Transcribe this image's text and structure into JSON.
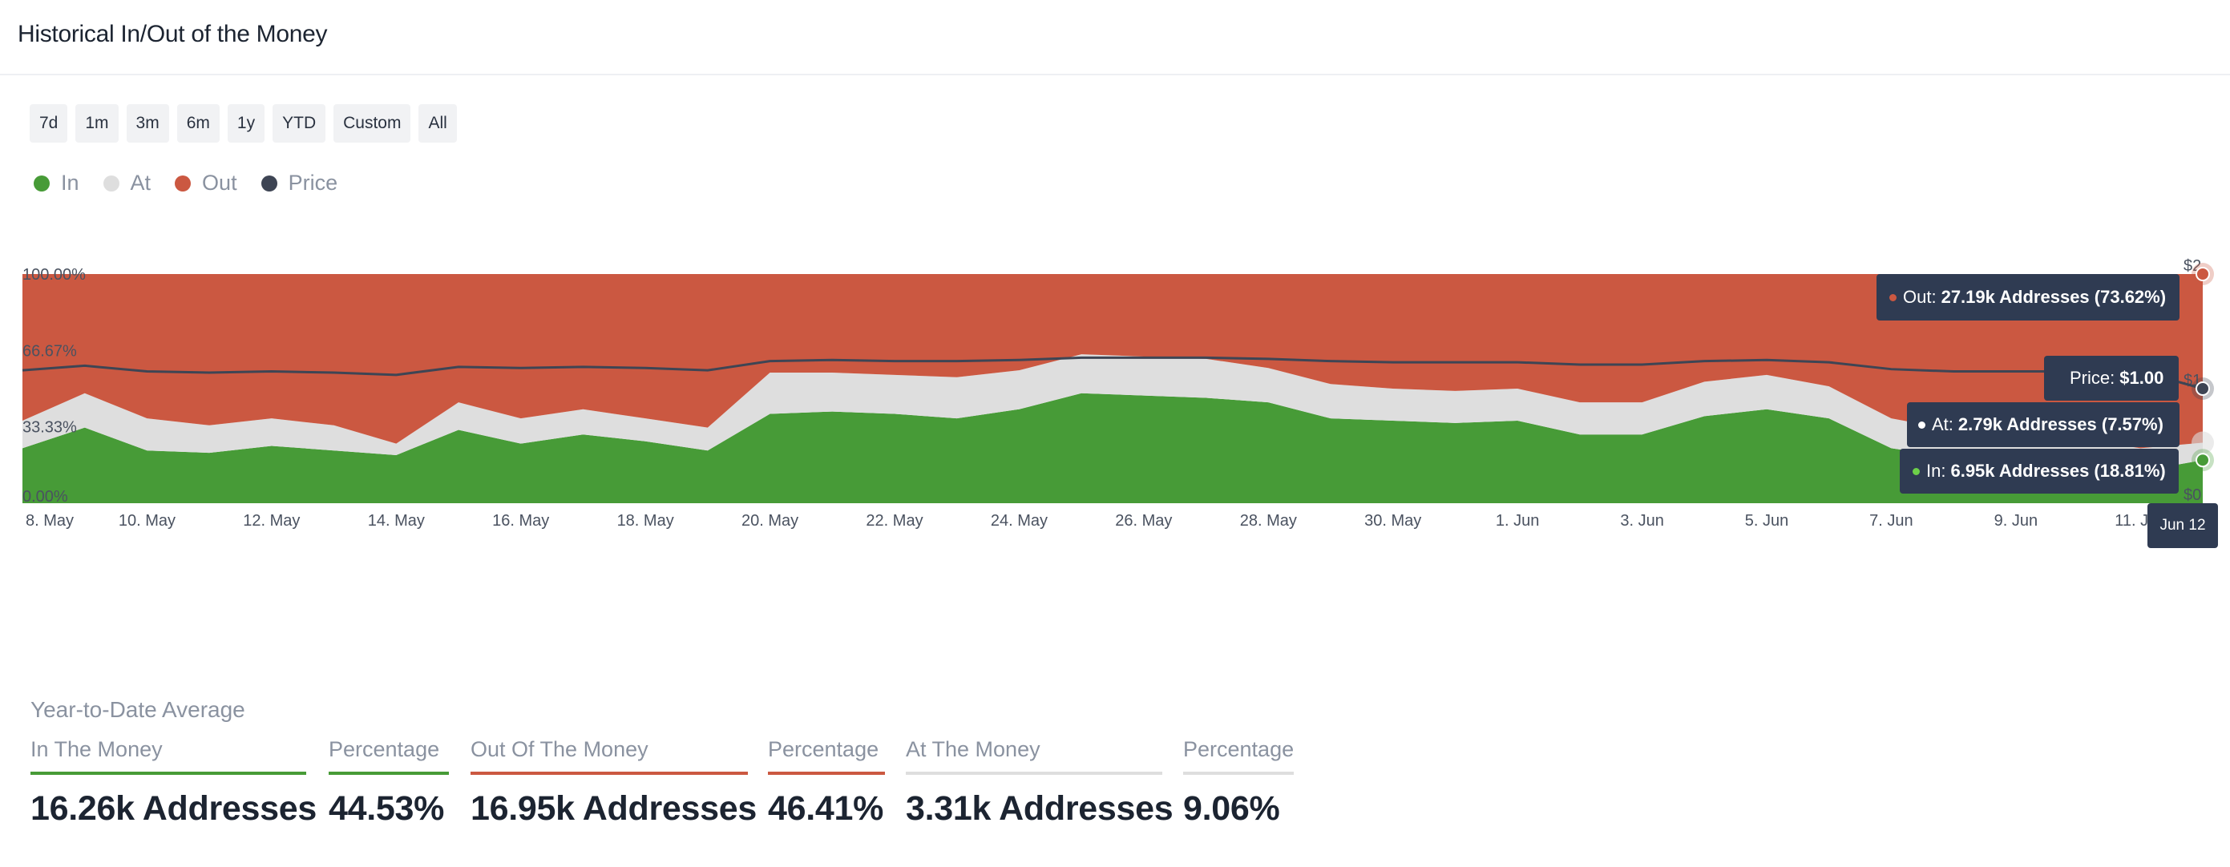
{
  "header": {
    "title": "Historical In/Out of the Money"
  },
  "ranges": [
    "7d",
    "1m",
    "3m",
    "6m",
    "1y",
    "YTD",
    "Custom",
    "All"
  ],
  "legend": [
    {
      "label": "In",
      "color": "#479b37"
    },
    {
      "label": "At",
      "color": "#dedede"
    },
    {
      "label": "Out",
      "color": "#cb5841"
    },
    {
      "label": "Price",
      "color": "#3e4554"
    }
  ],
  "chart_data": {
    "type": "area",
    "stacked": true,
    "normalized": true,
    "title": "Historical In/Out of the Money",
    "y_ticks": [
      "0.00%",
      "33.33%",
      "66.67%",
      "100.00%"
    ],
    "ylim": [
      0,
      100
    ],
    "right_axis_ticks": [
      "$0",
      "$1",
      "$2"
    ],
    "x_tick_labels": [
      "8. May",
      "10. May",
      "12. May",
      "14. May",
      "16. May",
      "18. May",
      "20. May",
      "22. May",
      "24. May",
      "26. May",
      "28. May",
      "30. May",
      "1. Jun",
      "3. Jun",
      "5. Jun",
      "7. Jun",
      "9. Jun",
      "11. Jun"
    ],
    "x": [
      "8 May",
      "9 May",
      "10 May",
      "11 May",
      "12 May",
      "13 May",
      "14 May",
      "15 May",
      "16 May",
      "17 May",
      "18 May",
      "19 May",
      "20 May",
      "21 May",
      "22 May",
      "23 May",
      "24 May",
      "25 May",
      "26 May",
      "27 May",
      "28 May",
      "29 May",
      "30 May",
      "31 May",
      "1 Jun",
      "2 Jun",
      "3 Jun",
      "4 Jun",
      "5 Jun",
      "6 Jun",
      "7 Jun",
      "8 Jun",
      "9 Jun",
      "10 Jun",
      "11 Jun",
      "12 Jun"
    ],
    "series": [
      {
        "name": "In",
        "values": [
          24,
          33,
          23,
          22,
          25,
          23,
          21,
          32,
          26,
          30,
          27,
          23,
          39,
          40,
          39,
          37,
          41,
          48,
          47,
          46,
          44,
          37,
          36,
          35,
          36,
          30,
          30,
          38,
          41,
          37,
          24,
          20,
          18,
          17,
          14,
          18.81
        ]
      },
      {
        "name": "At",
        "values": [
          12,
          15,
          14,
          12,
          12,
          11,
          5,
          12,
          11,
          11,
          10,
          10,
          18,
          17,
          17,
          18,
          17,
          17,
          17,
          17,
          15,
          15,
          14,
          14,
          14,
          14,
          14,
          15,
          15,
          14,
          13,
          12,
          12,
          11,
          10,
          7.57
        ]
      },
      {
        "name": "Out",
        "values": [
          64,
          52,
          63,
          66,
          63,
          66,
          74,
          56,
          63,
          59,
          63,
          67,
          43,
          43,
          44,
          45,
          42,
          35,
          36,
          37,
          41,
          48,
          50,
          51,
          50,
          56,
          56,
          47,
          44,
          49,
          63,
          68,
          70,
          72,
          76,
          73.62
        ]
      }
    ],
    "price_values": [
      1.16,
      1.2,
      1.15,
      1.14,
      1.15,
      1.14,
      1.12,
      1.19,
      1.18,
      1.19,
      1.18,
      1.16,
      1.24,
      1.25,
      1.24,
      1.24,
      1.25,
      1.27,
      1.27,
      1.27,
      1.26,
      1.24,
      1.23,
      1.23,
      1.23,
      1.21,
      1.21,
      1.24,
      1.25,
      1.23,
      1.17,
      1.15,
      1.15,
      1.15,
      1.15,
      1.0
    ],
    "price_ylim": [
      0,
      2
    ],
    "tooltip": {
      "date": "Jun 12",
      "out": {
        "label": "Out:",
        "value": "27.19k Addresses (73.62%)"
      },
      "price": {
        "label": "Price:",
        "value": "$1.00"
      },
      "at": {
        "label": "At:",
        "value": "2.79k Addresses (7.57%)"
      },
      "in": {
        "label": "In:",
        "value": "6.95k Addresses (18.81%)"
      }
    }
  },
  "stats": {
    "caption": "Year-to-Date Average",
    "items": [
      {
        "label": "In The Money",
        "value": "16.26k Addresses",
        "color": "#479b37"
      },
      {
        "label": "Percentage",
        "value": "44.53%",
        "color": "#479b37"
      },
      {
        "label": "Out Of The Money",
        "value": "16.95k Addresses",
        "color": "#cb5841"
      },
      {
        "label": "Percentage",
        "value": "46.41%",
        "color": "#cb5841"
      },
      {
        "label": "At The Money",
        "value": "3.31k Addresses",
        "color": "#dedede"
      },
      {
        "label": "Percentage",
        "value": "9.06%",
        "color": "#dedede"
      }
    ]
  }
}
